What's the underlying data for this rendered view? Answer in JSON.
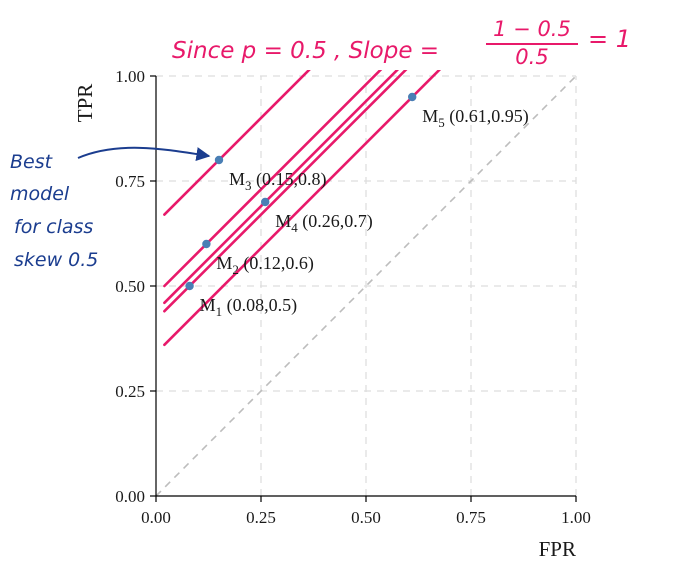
{
  "chart_data": {
    "type": "scatter",
    "xlabel": "FPR",
    "ylabel": "TPR",
    "xlim": [
      0,
      1
    ],
    "ylim": [
      0,
      1
    ],
    "xticks": [
      "0.00",
      "0.25",
      "0.50",
      "0.75",
      "1.00"
    ],
    "yticks": [
      "0.00",
      "0.25",
      "0.50",
      "0.75",
      "1.00"
    ],
    "grid": true,
    "points": [
      {
        "id": "M1",
        "sub": "1",
        "x": 0.08,
        "y": 0.5,
        "label": " (0.08,0.5)"
      },
      {
        "id": "M2",
        "sub": "2",
        "x": 0.12,
        "y": 0.6,
        "label": " (0.12,0.6)"
      },
      {
        "id": "M3",
        "sub": "3",
        "x": 0.15,
        "y": 0.8,
        "label": " (0.15,0.8)"
      },
      {
        "id": "M4",
        "sub": "4",
        "x": 0.26,
        "y": 0.7,
        "label": " (0.26,0.7)"
      },
      {
        "id": "M5",
        "sub": "5",
        "x": 0.61,
        "y": 0.95,
        "label": " (0.61,0.95)"
      }
    ],
    "diagonal": {
      "from": [
        0,
        0
      ],
      "to": [
        1,
        1
      ],
      "style": "dashed"
    },
    "iso_lines": {
      "slope": 1,
      "through": [
        "M1",
        "M2",
        "M3",
        "M4",
        "M5"
      ]
    },
    "colors": {
      "point": "#4a7fb5",
      "iso_line": "#e8196a",
      "annotation_pink": "#e8196a",
      "annotation_blue": "#1b3d8f",
      "grid": "#dedede",
      "diagonal": "#bdbdbd"
    }
  },
  "annotations": {
    "top_line": {
      "prefix": "Since p = 0.5 ,  Slope =",
      "numerator": "1 − 0.5",
      "denominator": "0.5",
      "result": "= 1"
    },
    "side_note": [
      "Best",
      "model",
      "for class",
      "skew 0.5"
    ]
  }
}
